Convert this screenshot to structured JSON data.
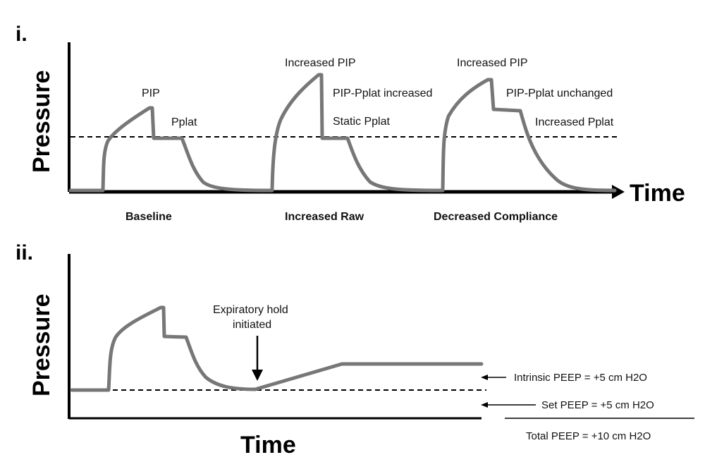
{
  "colors": {
    "waveform": "#777777",
    "axis": "#000000",
    "dashed": "#000000",
    "text": "#111111"
  },
  "panel_i": {
    "label": "i.",
    "y_axis_label": "Pressure",
    "x_axis_label": "Time",
    "annotations": {
      "baseline_pip": "PIP",
      "baseline_pplat": "Pplat",
      "raw_increased_pip": "Increased PIP",
      "raw_pip_pplat": "PIP-Pplat increased",
      "raw_static_pplat": "Static Pplat",
      "comp_increased_pip": "Increased PIP",
      "comp_pip_pplat": "PIP-Pplat unchanged",
      "comp_increased_pplat": "Increased Pplat"
    },
    "captions": {
      "baseline": "Baseline",
      "increased_raw": "Increased Raw",
      "decreased_compliance": "Decreased Compliance"
    }
  },
  "panel_ii": {
    "label": "ii.",
    "y_axis_label": "Pressure",
    "x_axis_label": "Time",
    "expiratory_hold_line1": "Expiratory hold",
    "expiratory_hold_line2": "initiated",
    "intrinsic_peep": "Intrinsic PEEP = +5 cm H2O",
    "set_peep": "Set PEEP = +5 cm H2O",
    "total_peep": "Total PEEP = +10 cm H2O"
  }
}
